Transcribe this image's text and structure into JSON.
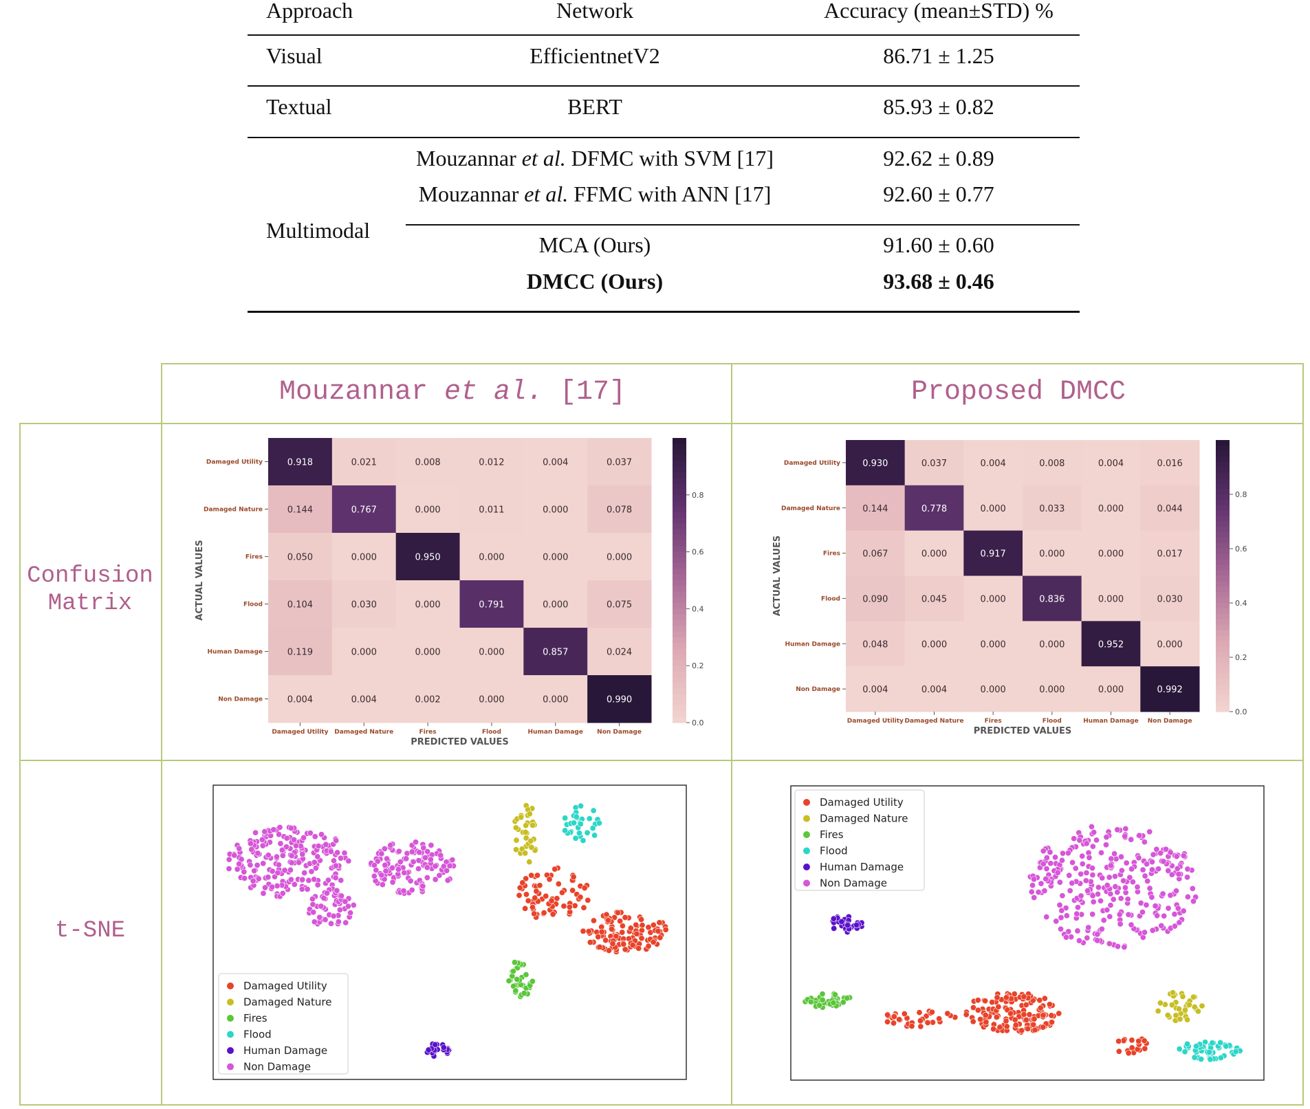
{
  "results_table": {
    "headers": [
      "Approach",
      "Network",
      "Accuracy (mean±STD) %"
    ],
    "visual": {
      "approach": "Visual",
      "network": "EfficientnetV2",
      "accuracy": "86.71 ± 1.25"
    },
    "textual": {
      "approach": "Textual",
      "network": "BERT",
      "accuracy": "85.93 ± 0.82"
    },
    "multimodal": {
      "approach": "Multimodal",
      "rows": [
        {
          "net_pre": "Mouzannar ",
          "net_em": "et al.",
          "net_post": " DFMC with SVM [17]",
          "accuracy": "92.62 ± 0.89"
        },
        {
          "net_pre": "Mouzannar ",
          "net_em": "et al.",
          "net_post": " FFMC with ANN [17]",
          "accuracy": "92.60 ± 0.77"
        },
        {
          "net_pre": "MCA (Ours)",
          "net_em": "",
          "net_post": "",
          "accuracy": "91.60 ± 0.60"
        },
        {
          "net_pre": "DMCC (Ours)",
          "net_em": "",
          "net_post": "",
          "accuracy": "93.68 ± 0.46",
          "bold": true
        }
      ]
    }
  },
  "comparison": {
    "col_left_pre": "Mouzannar ",
    "col_left_em": "et al.",
    "col_left_post": " [17]",
    "col_right": "Proposed DMCC",
    "row_cm_line1": "Confusion",
    "row_cm_line2": "Matrix",
    "row_tsne": "t-SNE"
  },
  "chart_data": [
    {
      "type": "heatmap",
      "name": "cm-left",
      "title": "",
      "xlabel": "PREDICTED VALUES",
      "ylabel": "ACTUAL VALUES",
      "labels": [
        "Damaged Utility",
        "Damaged Nature",
        "Fires",
        "Flood",
        "Human Damage",
        "Non Damage"
      ],
      "matrix": [
        [
          "0.918",
          "0.021",
          "0.008",
          "0.012",
          "0.004",
          "0.037"
        ],
        [
          "0.144",
          "0.767",
          "0.000",
          "0.011",
          "0.000",
          "0.078"
        ],
        [
          "0.050",
          "0.000",
          "0.950",
          "0.000",
          "0.000",
          "0.000"
        ],
        [
          "0.104",
          "0.030",
          "0.000",
          "0.791",
          "0.000",
          "0.075"
        ],
        [
          "0.119",
          "0.000",
          "0.000",
          "0.000",
          "0.857",
          "0.024"
        ],
        [
          "0.004",
          "0.004",
          "0.002",
          "0.000",
          "0.000",
          "0.990"
        ]
      ],
      "colorbar_ticks": [
        "0.0",
        "0.2",
        "0.4",
        "0.6",
        "0.8"
      ],
      "colorbar_range": [
        0,
        1
      ]
    },
    {
      "type": "heatmap",
      "name": "cm-right",
      "title": "",
      "xlabel": "PREDICTED VALUES",
      "ylabel": "ACTUAL VALUES",
      "labels": [
        "Damaged Utility",
        "Damaged Nature",
        "Fires",
        "Flood",
        "Human Damage",
        "Non Damage"
      ],
      "matrix": [
        [
          "0.930",
          "0.037",
          "0.004",
          "0.008",
          "0.004",
          "0.016"
        ],
        [
          "0.144",
          "0.778",
          "0.000",
          "0.033",
          "0.000",
          "0.044"
        ],
        [
          "0.067",
          "0.000",
          "0.917",
          "0.000",
          "0.000",
          "0.017"
        ],
        [
          "0.090",
          "0.045",
          "0.000",
          "0.836",
          "0.000",
          "0.030"
        ],
        [
          "0.048",
          "0.000",
          "0.000",
          "0.000",
          "0.952",
          "0.000"
        ],
        [
          "0.004",
          "0.004",
          "0.000",
          "0.000",
          "0.000",
          "0.992"
        ]
      ],
      "colorbar_ticks": [
        "0.0",
        "0.2",
        "0.4",
        "0.6",
        "0.8"
      ],
      "colorbar_range": [
        0,
        1
      ]
    },
    {
      "type": "scatter",
      "name": "tsne-left",
      "legend": [
        "Damaged Utility",
        "Damaged Nature",
        "Fires",
        "Flood",
        "Human Damage",
        "Non Damage"
      ],
      "legend_position": "bottom-left",
      "colors": [
        "#e8432a",
        "#c7be22",
        "#5bc63a",
        "#2bd6c8",
        "#5a12c9",
        "#d656d8"
      ],
      "clusters": [
        {
          "cls": 5,
          "cx": 0.16,
          "cy": 0.26,
          "rx": 0.13,
          "ry": 0.12,
          "n": 200
        },
        {
          "cls": 5,
          "cx": 0.42,
          "cy": 0.28,
          "rx": 0.09,
          "ry": 0.09,
          "n": 120
        },
        {
          "cls": 5,
          "cx": 0.25,
          "cy": 0.42,
          "rx": 0.05,
          "ry": 0.07,
          "n": 50
        },
        {
          "cls": 0,
          "cx": 0.72,
          "cy": 0.37,
          "rx": 0.08,
          "ry": 0.09,
          "n": 70
        },
        {
          "cls": 0,
          "cx": 0.87,
          "cy": 0.5,
          "rx": 0.09,
          "ry": 0.07,
          "n": 110
        },
        {
          "cls": 1,
          "cx": 0.66,
          "cy": 0.16,
          "rx": 0.025,
          "ry": 0.11,
          "n": 35
        },
        {
          "cls": 3,
          "cx": 0.78,
          "cy": 0.13,
          "rx": 0.04,
          "ry": 0.06,
          "n": 30
        },
        {
          "cls": 2,
          "cx": 0.65,
          "cy": 0.66,
          "rx": 0.025,
          "ry": 0.07,
          "n": 35
        },
        {
          "cls": 4,
          "cx": 0.475,
          "cy": 0.9,
          "rx": 0.025,
          "ry": 0.025,
          "n": 22
        }
      ]
    },
    {
      "type": "scatter",
      "name": "tsne-right",
      "legend": [
        "Damaged Utility",
        "Damaged Nature",
        "Fires",
        "Flood",
        "Human Damage",
        "Non Damage"
      ],
      "legend_position": "top-left",
      "colors": [
        "#e8432a",
        "#c7be22",
        "#5bc63a",
        "#2bd6c8",
        "#5a12c9",
        "#d656d8"
      ],
      "clusters": [
        {
          "cls": 5,
          "cx": 0.68,
          "cy": 0.34,
          "rx": 0.18,
          "ry": 0.21,
          "n": 300
        },
        {
          "cls": 4,
          "cx": 0.12,
          "cy": 0.47,
          "rx": 0.04,
          "ry": 0.03,
          "n": 30
        },
        {
          "cls": 2,
          "cx": 0.08,
          "cy": 0.73,
          "rx": 0.05,
          "ry": 0.025,
          "n": 35
        },
        {
          "cls": 0,
          "cx": 0.27,
          "cy": 0.79,
          "rx": 0.08,
          "ry": 0.03,
          "n": 35
        },
        {
          "cls": 0,
          "cx": 0.47,
          "cy": 0.77,
          "rx": 0.1,
          "ry": 0.07,
          "n": 140
        },
        {
          "cls": 1,
          "cx": 0.82,
          "cy": 0.75,
          "rx": 0.05,
          "ry": 0.05,
          "n": 35
        },
        {
          "cls": 3,
          "cx": 0.88,
          "cy": 0.9,
          "rx": 0.07,
          "ry": 0.03,
          "n": 50
        },
        {
          "cls": 0,
          "cx": 0.72,
          "cy": 0.88,
          "rx": 0.04,
          "ry": 0.03,
          "n": 18
        }
      ]
    }
  ]
}
